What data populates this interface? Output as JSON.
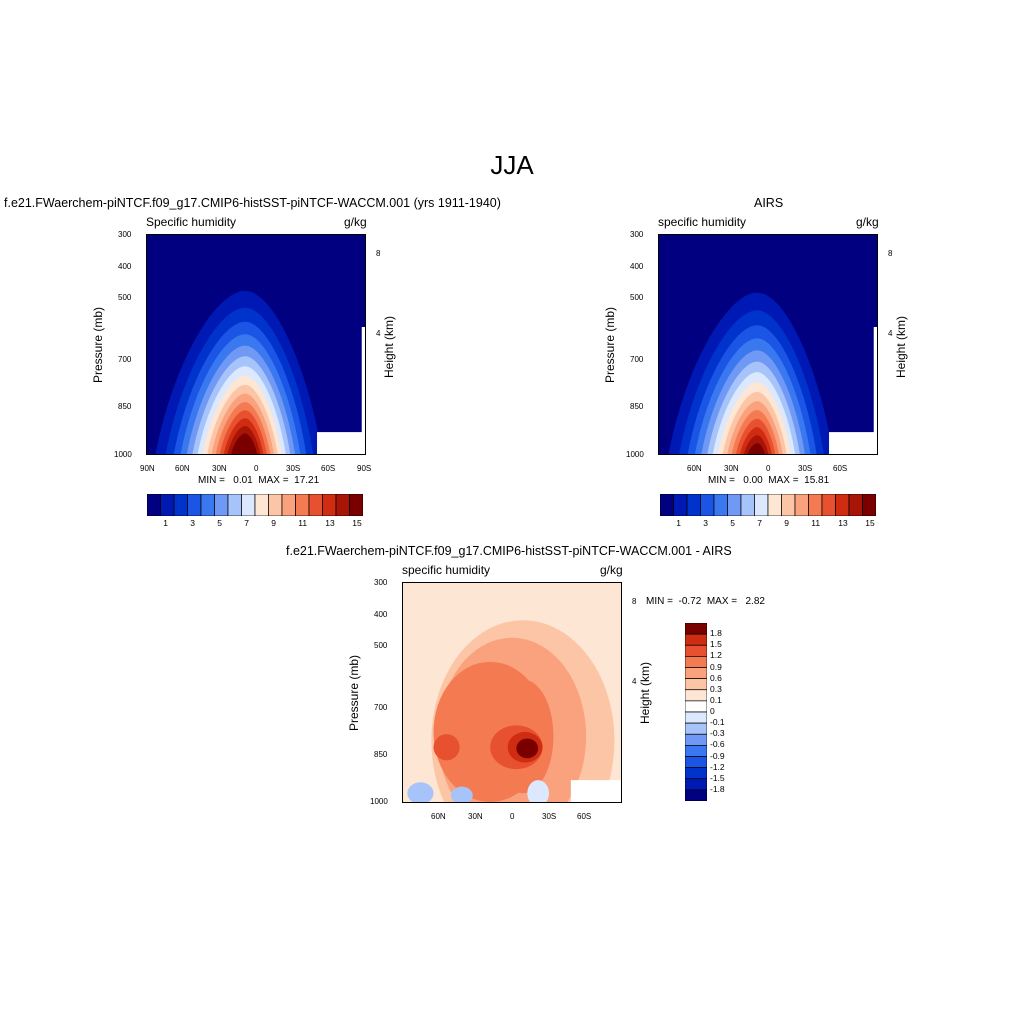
{
  "main_title": "JJA",
  "colors": {
    "sequential_scale": [
      "#000080",
      "#0019b4",
      "#0033cc",
      "#1a55e6",
      "#3a78f0",
      "#7098f5",
      "#a6c4fa",
      "#dbe8fd",
      "#fde6d4",
      "#fcc5a6",
      "#f9a27d",
      "#f47a52",
      "#e8512f",
      "#cf2c12",
      "#a81405",
      "#7a0000"
    ],
    "difference_scale": [
      "#000080",
      "#0019b4",
      "#0033cc",
      "#1a55e6",
      "#3a78f0",
      "#7098f5",
      "#a6c4fa",
      "#dbe8fd",
      "#ffffff",
      "#fde6d4",
      "#fcc5a6",
      "#f9a27d",
      "#f47a52",
      "#e8512f",
      "#cf2c12",
      "#7a0000"
    ]
  },
  "panels": {
    "model": {
      "title": "f.e21.FWaerchem-piNTCF.f09_g17.CMIP6-histSST-piNTCF-WACCM.001 (yrs 1911-1940)",
      "variable": "Specific humidity",
      "units": "g/kg",
      "ylabel": "Pressure (mb)",
      "ylabel_right": "Height (km)",
      "stats": "MIN =   0.01  MAX =  17.21",
      "x_ticks": [
        "90N",
        "60N",
        "30N",
        "0",
        "30S",
        "60S",
        "90S"
      ],
      "y_ticks": [
        "300",
        "400",
        "500",
        "700",
        "850",
        "1000"
      ],
      "height_ticks": [
        "8",
        "4"
      ]
    },
    "obs": {
      "title": "AIRS",
      "variable": "specific humidity",
      "units": "g/kg",
      "ylabel": "Pressure (mb)",
      "ylabel_right": "Height (km)",
      "stats": "MIN =   0.00  MAX =  15.81",
      "x_ticks": [
        "60N",
        "30N",
        "0",
        "30S",
        "60S"
      ],
      "y_ticks": [
        "300",
        "400",
        "500",
        "700",
        "850",
        "1000"
      ],
      "height_ticks": [
        "8",
        "4"
      ]
    },
    "diff": {
      "title": "f.e21.FWaerchem-piNTCF.f09_g17.CMIP6-histSST-piNTCF-WACCM.001 - AIRS",
      "variable": "specific humidity",
      "units": "g/kg",
      "ylabel": "Pressure (mb)",
      "ylabel_right": "Height (km)",
      "stats": "MIN =  -0.72  MAX =   2.82",
      "x_ticks": [
        "60N",
        "30N",
        "0",
        "30S",
        "60S"
      ],
      "y_ticks": [
        "300",
        "400",
        "500",
        "700",
        "850",
        "1000"
      ],
      "height_ticks": [
        "8",
        "4"
      ]
    }
  },
  "colorbars": {
    "sequential_labels": [
      "1",
      "3",
      "5",
      "7",
      "9",
      "11",
      "13",
      "15"
    ],
    "difference_labels": [
      "1.8",
      "1.5",
      "1.2",
      "0.9",
      "0.6",
      "0.3",
      "0.1",
      "0",
      "-0.1",
      "-0.3",
      "-0.6",
      "-0.9",
      "-1.2",
      "-1.5",
      "-1.8"
    ]
  },
  "chart_data": [
    {
      "type": "heatmap",
      "title": "f.e21.FWaerchem-piNTCF.f09_g17.CMIP6-histSST-piNTCF-WACCM.001 (yrs 1911-1940)",
      "variable": "Specific humidity",
      "units": "g/kg",
      "xlabel": "",
      "ylabel": "Pressure (mb)",
      "ylabel_right": "Height (km)",
      "x_ticks": [
        "90N",
        "60N",
        "30N",
        "0",
        "30S",
        "60S",
        "90S"
      ],
      "y_ticks_mb": [
        300,
        400,
        500,
        700,
        850,
        1000
      ],
      "y_scale": "log-pressure",
      "min": 0.01,
      "max": 17.21,
      "peak_location_lat": 10,
      "peak_location_p": 1000,
      "contour_levels": [
        1,
        2,
        3,
        4,
        5,
        6,
        7,
        8,
        9,
        10,
        11,
        12,
        13,
        14,
        15
      ],
      "missing_region": "southern high latitudes near surface"
    },
    {
      "type": "heatmap",
      "title": "AIRS",
      "variable": "specific humidity",
      "units": "g/kg",
      "ylabel": "Pressure (mb)",
      "ylabel_right": "Height (km)",
      "x_ticks": [
        "60N",
        "30N",
        "0",
        "30S",
        "60S"
      ],
      "y_ticks_mb": [
        300,
        400,
        500,
        700,
        850,
        1000
      ],
      "y_scale": "log-pressure",
      "min": 0.0,
      "max": 15.81,
      "peak_location_lat": 8,
      "peak_location_p": 1000,
      "contour_levels": [
        1,
        2,
        3,
        4,
        5,
        6,
        7,
        8,
        9,
        10,
        11,
        12,
        13,
        14,
        15
      ]
    },
    {
      "type": "heatmap",
      "title": "f.e21.FWaerchem-piNTCF.f09_g17.CMIP6-histSST-piNTCF-WACCM.001 - AIRS",
      "variable": "specific humidity",
      "units": "g/kg",
      "ylabel": "Pressure (mb)",
      "ylabel_right": "Height (km)",
      "x_ticks": [
        "60N",
        "30N",
        "0",
        "30S",
        "60S"
      ],
      "y_ticks_mb": [
        300,
        400,
        500,
        700,
        850,
        1000
      ],
      "y_scale": "log-pressure",
      "min": -0.72,
      "max": 2.82,
      "contour_levels": [
        -1.8,
        -1.5,
        -1.2,
        -0.9,
        -0.6,
        -0.3,
        -0.1,
        0,
        0.1,
        0.3,
        0.6,
        0.9,
        1.2,
        1.5,
        1.8
      ]
    }
  ]
}
